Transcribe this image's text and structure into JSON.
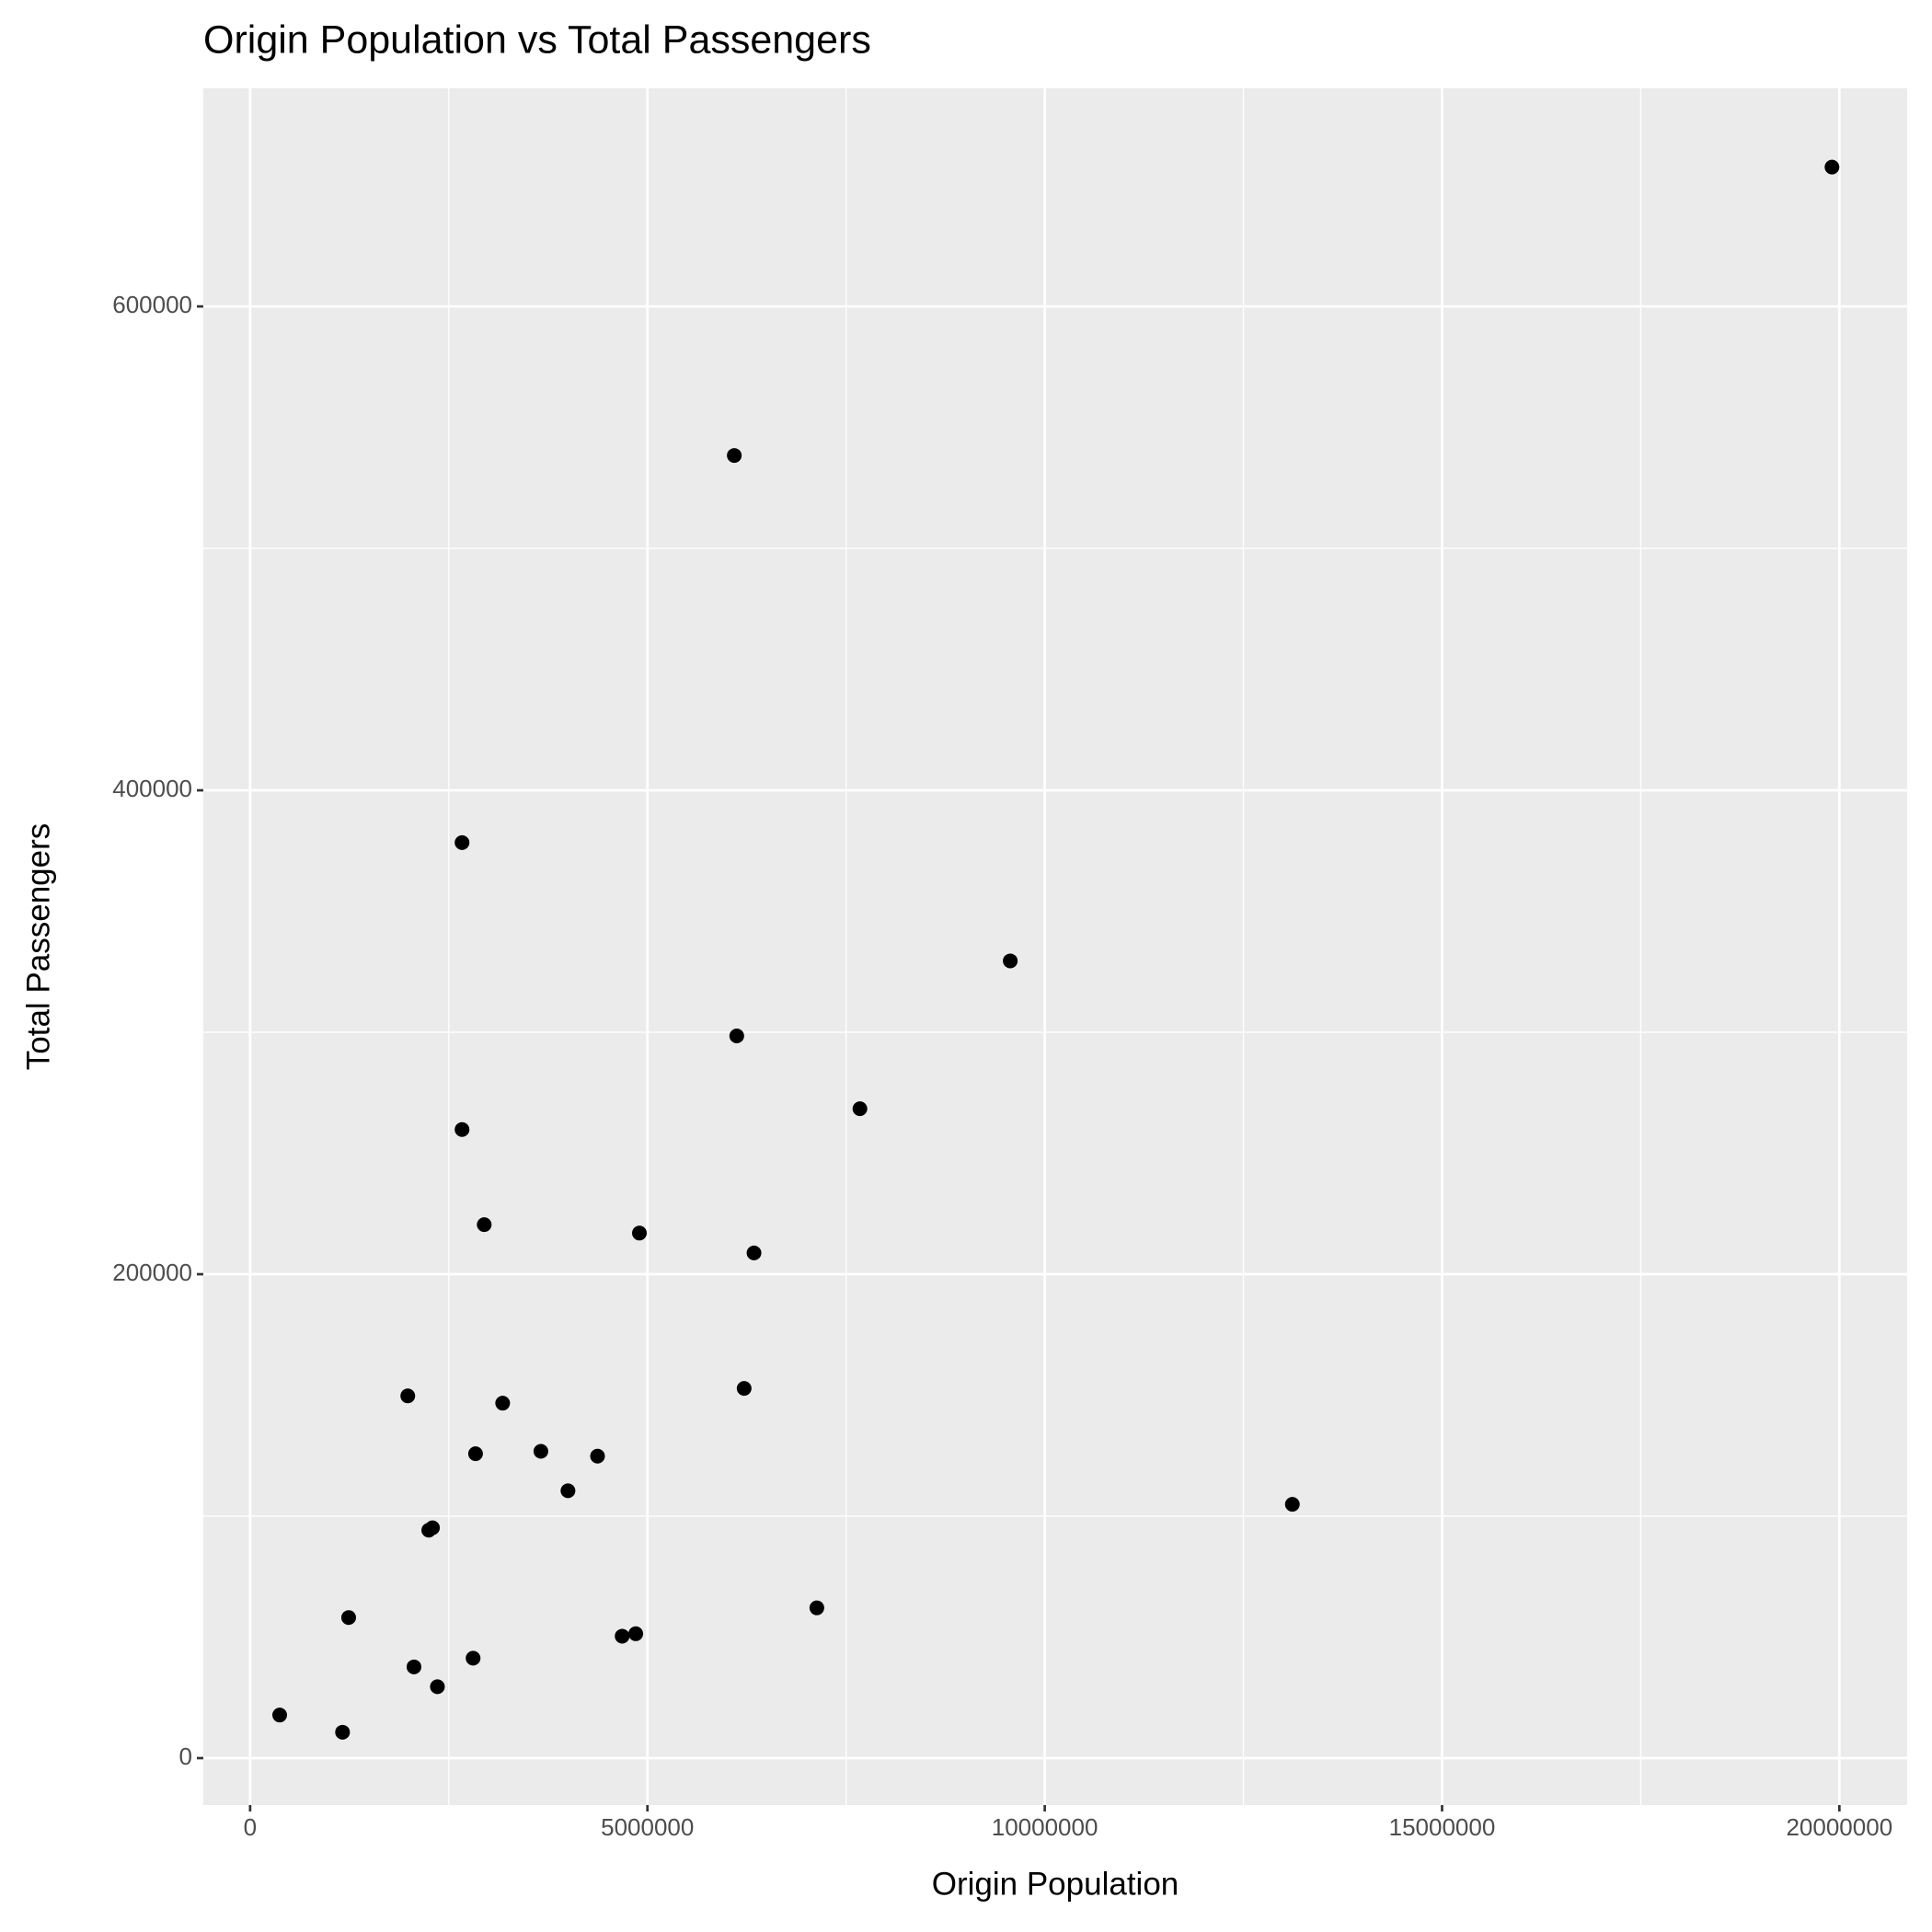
{
  "chart_data": {
    "type": "scatter",
    "title": "Origin Population vs Total Passengers",
    "x_label": "Origin Population",
    "y_label": "Total Passengers",
    "series": [
      {
        "color": "#000000",
        "x": [
          19907000,
          6093000,
          2667000,
          9566000,
          6124000,
          7674000,
          2667000,
          2946000,
          4899000,
          6341000,
          1984000,
          3178000,
          6217000,
          2837000,
          3659000,
          4372000,
          4000000,
          13116000,
          2248000,
          2295000,
          1240000,
          7132000,
          4682000,
          4853000,
          2806000,
          2062000,
          2357000,
          372000,
          1163000
        ],
        "values": [
          657600,
          538400,
          378400,
          329500,
          298500,
          268400,
          259800,
          220500,
          217000,
          208800,
          149700,
          146700,
          152800,
          125800,
          126800,
          124800,
          110500,
          104900,
          94200,
          95200,
          58100,
          62100,
          50400,
          51400,
          41300,
          37700,
          29500,
          17800,
          10700
        ]
      }
    ],
    "xlim": [
      -589000,
      20853000
    ],
    "ylim": [
      -19400,
      690150
    ],
    "xticks": [
      0,
      5000000,
      10000000,
      15000000,
      20000000
    ],
    "yticks": [
      0,
      200000,
      400000,
      600000
    ],
    "grid": true
  }
}
